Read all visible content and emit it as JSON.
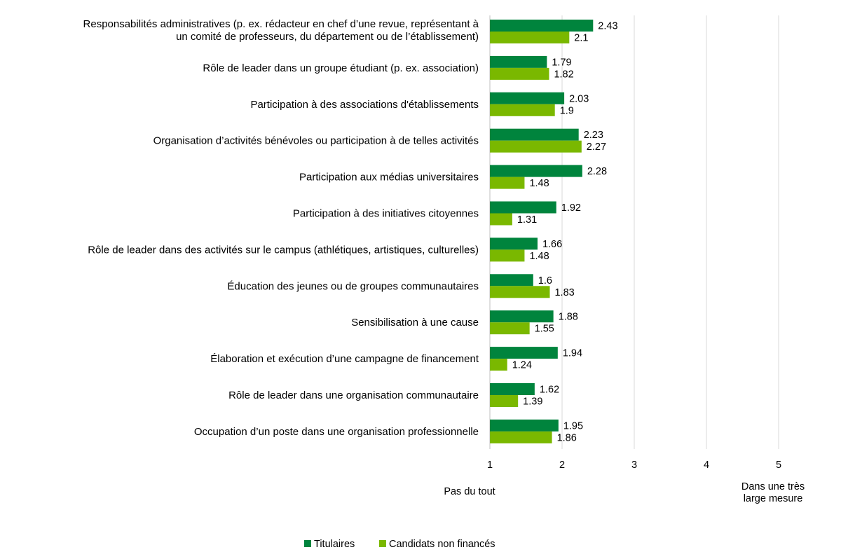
{
  "chart_data": {
    "type": "bar",
    "orientation": "horizontal",
    "categories": [
      [
        "Responsabilités administratives (p. ex. rédacteur en chef d’une revue, représentant à",
        "un comité de professeurs, du département ou de l’établissement)"
      ],
      [
        "Rôle de leader dans un groupe étudiant (p. ex. association)"
      ],
      [
        "Participation à des associations d'établissements"
      ],
      [
        "Organisation d’activités bénévoles ou participation à de telles activités"
      ],
      [
        "Participation aux médias universitaires"
      ],
      [
        "Participation à des initiatives citoyennes"
      ],
      [
        "Rôle de leader dans des activités sur le campus (athlétiques, artistiques, culturelles)"
      ],
      [
        "Éducation des jeunes ou de groupes communautaires"
      ],
      [
        "Sensibilisation à une cause"
      ],
      [
        "Élaboration et exécution d’une campagne de financement"
      ],
      [
        "Rôle de leader dans une organisation communautaire"
      ],
      [
        "Occupation d’un poste dans une organisation professionnelle"
      ]
    ],
    "series": [
      {
        "name": "Titulaires",
        "color": "#00843D",
        "values": [
          2.43,
          1.79,
          2.03,
          2.23,
          2.28,
          1.92,
          1.66,
          1.6,
          1.88,
          1.94,
          1.62,
          1.95
        ],
        "labels": [
          "2.43",
          "1.79",
          "2.03",
          "2.23",
          "2.28",
          "1.92",
          "1.66",
          "1.6",
          "1.88",
          "1.94",
          "1.62",
          "1.95"
        ]
      },
      {
        "name": "Candidats non financés",
        "color": "#7AB800",
        "values": [
          2.1,
          1.82,
          1.9,
          2.27,
          1.48,
          1.31,
          1.48,
          1.83,
          1.55,
          1.24,
          1.39,
          1.86
        ],
        "labels": [
          "2.1",
          "1.82",
          "1.9",
          "2.27",
          "1.48",
          "1.31",
          "1.48",
          "1.83",
          "1.55",
          "1.24",
          "1.39",
          "1.86"
        ]
      }
    ],
    "xlim": [
      1,
      5
    ],
    "xticks": [
      "1",
      "2",
      "3",
      "4",
      "5"
    ],
    "scale_anchors": {
      "low": [
        "Pas du tout"
      ],
      "high": [
        "Dans une très",
        "large mesure"
      ]
    },
    "grid": "vertical",
    "gridline_color": "#D9D9D9",
    "legend_position": "bottom"
  }
}
